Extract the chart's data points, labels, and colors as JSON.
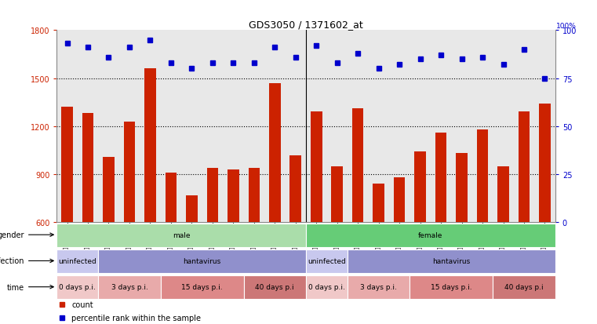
{
  "title": "GDS3050 / 1371602_at",
  "samples": [
    "GSM175452",
    "GSM175453",
    "GSM175454",
    "GSM175455",
    "GSM175456",
    "GSM175457",
    "GSM175458",
    "GSM175459",
    "GSM175460",
    "GSM175461",
    "GSM175462",
    "GSM175463",
    "GSM175440",
    "GSM175441",
    "GSM175442",
    "GSM175443",
    "GSM175444",
    "GSM175445",
    "GSM175446",
    "GSM175447",
    "GSM175448",
    "GSM175449",
    "GSM175450",
    "GSM175451"
  ],
  "counts": [
    1320,
    1280,
    1010,
    1230,
    1560,
    910,
    770,
    940,
    930,
    940,
    1470,
    1020,
    1290,
    950,
    1310,
    840,
    880,
    1040,
    1160,
    1030,
    1180,
    950,
    1290,
    1340
  ],
  "percentiles": [
    93,
    91,
    86,
    91,
    95,
    83,
    80,
    83,
    83,
    83,
    91,
    86,
    92,
    83,
    88,
    80,
    82,
    85,
    87,
    85,
    86,
    82,
    90,
    75
  ],
  "ylim_left": [
    600,
    1800
  ],
  "ylim_right": [
    0,
    100
  ],
  "yticks_left": [
    600,
    900,
    1200,
    1500,
    1800
  ],
  "yticks_right": [
    0,
    25,
    50,
    75,
    100
  ],
  "hgrid_lines": [
    900,
    1200,
    1500
  ],
  "bar_color": "#cc2200",
  "dot_color": "#0000cc",
  "chart_bg": "#e8e8e8",
  "gender_groups": [
    {
      "text": "male",
      "start": 0,
      "end": 12,
      "color": "#aaddaa"
    },
    {
      "text": "female",
      "start": 12,
      "end": 24,
      "color": "#66cc77"
    }
  ],
  "infection_groups": [
    {
      "text": "uninfected",
      "start": 0,
      "end": 2,
      "color": "#c8c8ee"
    },
    {
      "text": "hantavirus",
      "start": 2,
      "end": 12,
      "color": "#9090cc"
    },
    {
      "text": "uninfected",
      "start": 12,
      "end": 14,
      "color": "#c8c8ee"
    },
    {
      "text": "hantavirus",
      "start": 14,
      "end": 24,
      "color": "#9090cc"
    }
  ],
  "time_groups": [
    {
      "text": "0 days p.i.",
      "start": 0,
      "end": 2,
      "color": "#f0c8c8"
    },
    {
      "text": "3 days p.i.",
      "start": 2,
      "end": 5,
      "color": "#e8aaaa"
    },
    {
      "text": "15 days p.i.",
      "start": 5,
      "end": 9,
      "color": "#dd8888"
    },
    {
      "text": "40 days p.i",
      "start": 9,
      "end": 12,
      "color": "#cc7777"
    },
    {
      "text": "0 days p.i.",
      "start": 12,
      "end": 14,
      "color": "#f0c8c8"
    },
    {
      "text": "3 days p.i.",
      "start": 14,
      "end": 17,
      "color": "#e8aaaa"
    },
    {
      "text": "15 days p.i.",
      "start": 17,
      "end": 21,
      "color": "#dd8888"
    },
    {
      "text": "40 days p.i",
      "start": 21,
      "end": 24,
      "color": "#cc7777"
    }
  ],
  "row_labels": [
    "gender",
    "infection",
    "time"
  ],
  "legend_items": [
    {
      "color": "#cc2200",
      "text": "count"
    },
    {
      "color": "#0000cc",
      "text": "percentile rank within the sample"
    }
  ]
}
